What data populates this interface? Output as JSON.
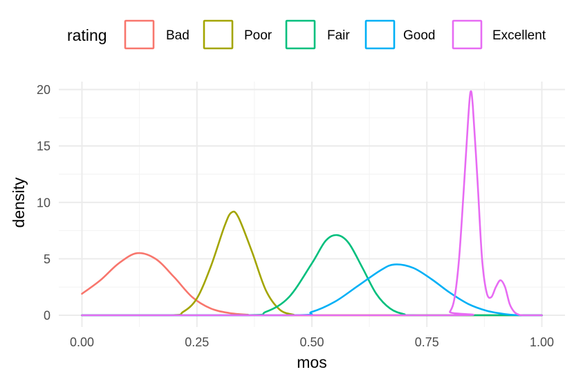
{
  "chart_data": {
    "type": "line",
    "subtype": "density",
    "xlabel": "mos",
    "ylabel": "density",
    "xlim": [
      0,
      1
    ],
    "ylim": [
      0,
      20
    ],
    "x_ticks": [
      0,
      0.25,
      0.5,
      0.75,
      1
    ],
    "x_tick_labels": [
      "0.00",
      "0.25",
      "0.50",
      "0.75",
      "1.00"
    ],
    "y_ticks": [
      0,
      5,
      10,
      15,
      20
    ],
    "y_tick_labels": [
      "0",
      "5",
      "10",
      "15",
      "20"
    ],
    "grid": true,
    "legend": {
      "title": "rating",
      "position": "top"
    },
    "series": [
      {
        "name": "Bad",
        "color": "#F8766D",
        "points": [
          [
            0,
            1.9
          ],
          [
            0.04,
            3.1
          ],
          [
            0.08,
            4.6
          ],
          [
            0.12,
            5.5
          ],
          [
            0.16,
            5.0
          ],
          [
            0.2,
            3.4
          ],
          [
            0.24,
            1.6
          ],
          [
            0.28,
            0.6
          ],
          [
            0.32,
            0.2
          ],
          [
            0.36,
            0.05
          ],
          [
            0.4,
            0
          ],
          [
            1.0,
            0
          ]
        ]
      },
      {
        "name": "Poor",
        "color": "#A3A500",
        "points": [
          [
            0,
            0
          ],
          [
            0.19,
            0
          ],
          [
            0.22,
            0.3
          ],
          [
            0.25,
            1.5
          ],
          [
            0.28,
            4.3
          ],
          [
            0.31,
            7.9
          ],
          [
            0.325,
            9.1
          ],
          [
            0.34,
            8.7
          ],
          [
            0.37,
            5.6
          ],
          [
            0.4,
            2.2
          ],
          [
            0.43,
            0.5
          ],
          [
            0.46,
            0.05
          ],
          [
            0.48,
            0
          ],
          [
            1.0,
            0
          ]
        ]
      },
      {
        "name": "Fair",
        "color": "#00BF7D",
        "points": [
          [
            0,
            0
          ],
          [
            0.35,
            0
          ],
          [
            0.4,
            0.3
          ],
          [
            0.45,
            1.6
          ],
          [
            0.5,
            4.6
          ],
          [
            0.53,
            6.6
          ],
          [
            0.555,
            7.1
          ],
          [
            0.58,
            6.4
          ],
          [
            0.61,
            4.2
          ],
          [
            0.64,
            1.9
          ],
          [
            0.67,
            0.6
          ],
          [
            0.7,
            0.1
          ],
          [
            0.73,
            0
          ],
          [
            1.0,
            0
          ]
        ]
      },
      {
        "name": "Good",
        "color": "#00B0F6",
        "points": [
          [
            0,
            0
          ],
          [
            0.45,
            0
          ],
          [
            0.5,
            0.3
          ],
          [
            0.55,
            1.2
          ],
          [
            0.6,
            2.6
          ],
          [
            0.65,
            4.0
          ],
          [
            0.68,
            4.5
          ],
          [
            0.72,
            4.2
          ],
          [
            0.76,
            3.2
          ],
          [
            0.8,
            2.0
          ],
          [
            0.84,
            1.0
          ],
          [
            0.88,
            0.4
          ],
          [
            0.92,
            0.1
          ],
          [
            0.95,
            0
          ],
          [
            1.0,
            0
          ]
        ]
      },
      {
        "name": "Excellent",
        "color": "#E76BF3",
        "points": [
          [
            0,
            0
          ],
          [
            0.79,
            0
          ],
          [
            0.8,
            0.3
          ],
          [
            0.81,
            1.5
          ],
          [
            0.82,
            5.0
          ],
          [
            0.83,
            11.0
          ],
          [
            0.84,
            17.5
          ],
          [
            0.845,
            19.8
          ],
          [
            0.85,
            18.5
          ],
          [
            0.86,
            12.0
          ],
          [
            0.87,
            5.0
          ],
          [
            0.88,
            2.0
          ],
          [
            0.89,
            1.6
          ],
          [
            0.9,
            2.5
          ],
          [
            0.91,
            3.1
          ],
          [
            0.92,
            2.5
          ],
          [
            0.93,
            1.0
          ],
          [
            0.94,
            0.3
          ],
          [
            0.95,
            0.05
          ],
          [
            0.96,
            0
          ],
          [
            1.0,
            0
          ]
        ]
      }
    ]
  }
}
